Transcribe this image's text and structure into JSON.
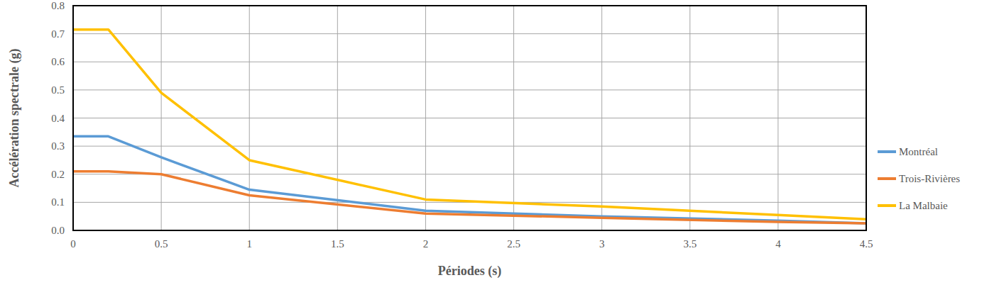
{
  "chart_data": {
    "type": "line",
    "x_label": "Périodes (s)",
    "y_label": "Accélération spectrale (g)",
    "x": [
      0,
      0.2,
      0.5,
      1,
      2,
      3,
      4,
      4.5
    ],
    "series": [
      {
        "name": "Montréal",
        "color": "#5b9bd5",
        "values": [
          0.335,
          0.335,
          0.26,
          0.145,
          0.07,
          0.05,
          0.035,
          0.025
        ]
      },
      {
        "name": "Trois-Rivières",
        "color": "#ed7d31",
        "values": [
          0.21,
          0.21,
          0.2,
          0.125,
          0.06,
          0.045,
          0.03,
          0.025
        ]
      },
      {
        "name": "La Malbaie",
        "color": "#ffc000",
        "values": [
          0.715,
          0.715,
          0.49,
          0.25,
          0.11,
          0.085,
          0.055,
          0.04
        ]
      }
    ],
    "xlim": [
      0,
      4.5
    ],
    "xticks": [
      0,
      0.5,
      1,
      1.5,
      2,
      2.5,
      3,
      3.5,
      4,
      4.5
    ],
    "ylim": [
      0,
      0.8
    ],
    "yticks": [
      {
        "value": 0,
        "label": "0.0"
      },
      0.1,
      0.2,
      0.3,
      0.4,
      0.5,
      0.6,
      0.7,
      0.8
    ],
    "grid": true,
    "legend": "right"
  }
}
